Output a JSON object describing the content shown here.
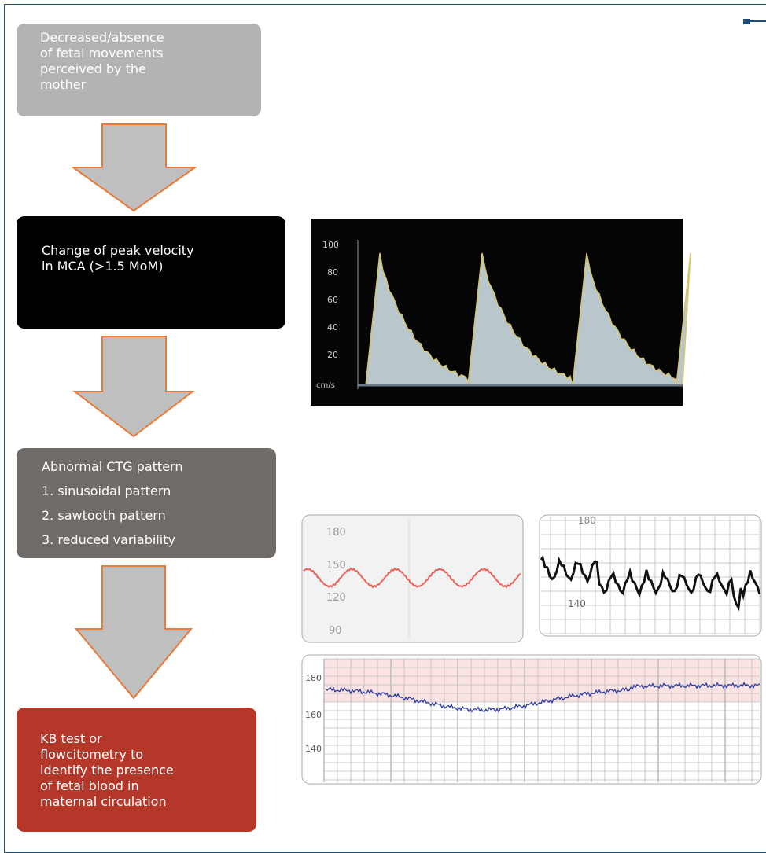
{
  "flowchart": {
    "steps": [
      {
        "lines": [
          "Decreased/absence",
          "of fetal movements",
          "perceived by the",
          "mother"
        ]
      },
      {
        "lines": [
          "Change of peak velocity",
          "in MCA (>1.5 MoM)"
        ]
      },
      {
        "lines": [
          "Abnormal CTG pattern",
          "1. sinusoidal pattern",
          "2. sawtooth pattern",
          "3. reduced variability"
        ]
      },
      {
        "lines": [
          "KB test or",
          "flowcitometry to",
          "identify the presence",
          "of fetal blood in",
          "maternal circulation"
        ]
      }
    ]
  },
  "images": {
    "doppler": {
      "axis_labels": [
        "100",
        "80",
        "60",
        "40",
        "20",
        "cm/s"
      ]
    },
    "ctg_sinusoidal": {
      "axis_labels": [
        "180",
        "150",
        "120",
        "90"
      ]
    },
    "ctg_sawtooth": {
      "axis_labels": [
        "180",
        "140"
      ]
    },
    "ctg_reduced_variability": {
      "axis_labels": [
        "180",
        "160",
        "140"
      ]
    }
  }
}
